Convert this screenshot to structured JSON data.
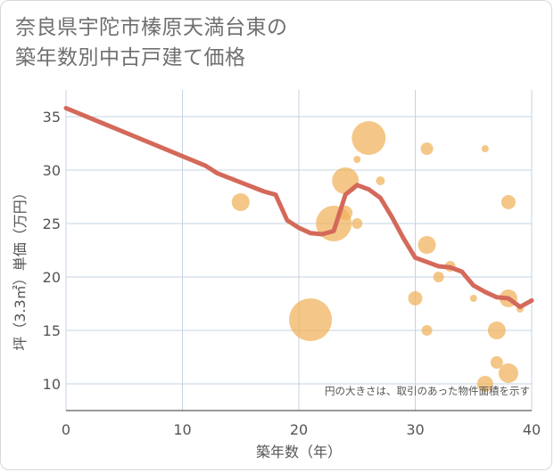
{
  "title_line1": "奈良県宇陀市榛原天満台東の",
  "title_line2": "築年数別中古戸建て価格",
  "chart_data": {
    "type": "scatter",
    "xlabel": "築年数（年）",
    "ylabel": "坪（3.3㎡）単価（万円）",
    "xlim": [
      0,
      40
    ],
    "ylim": [
      7.5,
      37.5
    ],
    "xticks": [
      0,
      10,
      20,
      30,
      40
    ],
    "yticks": [
      10,
      15,
      20,
      25,
      30,
      35
    ],
    "grid": true,
    "annotation": "円の大きさは、取引のあった物件面積を示す",
    "colors": {
      "points": "#f0b25a",
      "line": "#d4695a",
      "grid": "#c5d3e0",
      "axis": "#333333"
    },
    "points": [
      {
        "x": 15,
        "y": 27,
        "s": 10
      },
      {
        "x": 21,
        "y": 16,
        "s": 24
      },
      {
        "x": 23,
        "y": 25,
        "s": 20
      },
      {
        "x": 24,
        "y": 29,
        "s": 15
      },
      {
        "x": 24,
        "y": 26,
        "s": 8
      },
      {
        "x": 25,
        "y": 31,
        "s": 4
      },
      {
        "x": 25,
        "y": 25,
        "s": 6
      },
      {
        "x": 26,
        "y": 33,
        "s": 19
      },
      {
        "x": 27,
        "y": 29,
        "s": 5
      },
      {
        "x": 30,
        "y": 18,
        "s": 8
      },
      {
        "x": 31,
        "y": 32,
        "s": 7
      },
      {
        "x": 31,
        "y": 23,
        "s": 10
      },
      {
        "x": 31,
        "y": 15,
        "s": 6
      },
      {
        "x": 32,
        "y": 20,
        "s": 6
      },
      {
        "x": 33,
        "y": 21,
        "s": 6
      },
      {
        "x": 35,
        "y": 18,
        "s": 4
      },
      {
        "x": 36,
        "y": 32,
        "s": 4
      },
      {
        "x": 36,
        "y": 10,
        "s": 9
      },
      {
        "x": 37,
        "y": 15,
        "s": 10
      },
      {
        "x": 37,
        "y": 12,
        "s": 7
      },
      {
        "x": 38,
        "y": 27,
        "s": 8
      },
      {
        "x": 38,
        "y": 18,
        "s": 10
      },
      {
        "x": 38,
        "y": 11,
        "s": 11
      },
      {
        "x": 39,
        "y": 17,
        "s": 4
      }
    ],
    "trend": {
      "x": [
        0,
        12,
        13,
        17,
        18,
        19,
        20,
        21,
        22,
        23,
        24,
        25,
        26,
        27,
        28,
        29,
        30,
        31,
        32,
        33,
        34,
        35,
        36,
        37,
        38,
        39,
        40
      ],
      "y": [
        35.8,
        30.4,
        29.7,
        28.0,
        27.7,
        25.3,
        24.6,
        24.1,
        24.0,
        24.3,
        27.7,
        28.6,
        28.2,
        27.4,
        25.6,
        23.6,
        21.8,
        21.4,
        21.0,
        20.9,
        20.5,
        19.2,
        18.6,
        18.1,
        18.0,
        17.2,
        17.8
      ]
    }
  }
}
